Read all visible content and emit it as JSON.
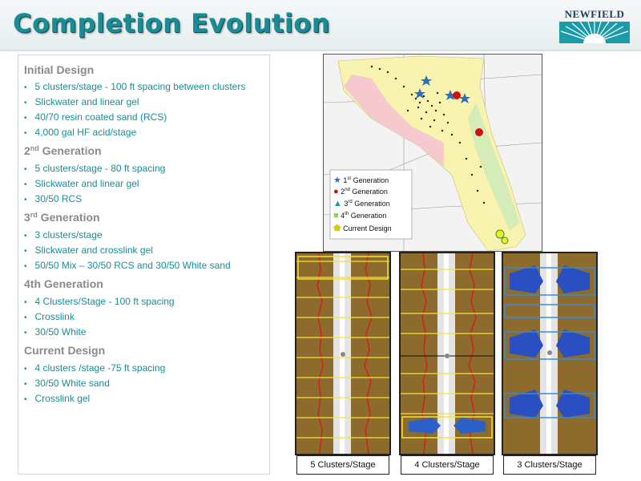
{
  "header": {
    "title": "Completion Evolution",
    "logo_text": "NEWFIELD"
  },
  "text_panel": {
    "initial": {
      "heading": "Initial Design",
      "bullets": [
        "5 clusters/stage - 100 ft spacing between clusters",
        "Slickwater and linear gel",
        "40/70 resin coated sand (RCS)",
        "4,000 gal HF acid/stage"
      ]
    },
    "second": {
      "heading_num": "2",
      "heading_sup": "nd",
      "heading_rest": " Generation",
      "bullets": [
        "5 clusters/stage - 80 ft spacing",
        "Slickwater and linear gel",
        "30/50 RCS"
      ]
    },
    "third": {
      "heading_num": "3",
      "heading_sup": "rd",
      "heading_rest": " Generation",
      "bullets": [
        "3 clusters/stage",
        "Slickwater and crosslink gel",
        "50/50 Mix – 30/50 RCS and 30/50 White sand"
      ]
    },
    "fourth": {
      "heading": "4th Generation",
      "bullets": [
        "4 Clusters/Stage - 100 ft spacing",
        "Crosslink",
        "30/50 White"
      ]
    },
    "current": {
      "heading": "Current Design",
      "bullets": [
        "4 clusters /stage -75 ft spacing",
        "30/50 White sand",
        "Crosslink gel"
      ]
    }
  },
  "map": {
    "legend": [
      {
        "num": "1",
        "sup": "st",
        "rest": " Generation",
        "marker": "star",
        "color": "#2a6fc4"
      },
      {
        "num": "2",
        "sup": "nd",
        "rest": " Generation",
        "marker": "circle",
        "color": "#cc1111"
      },
      {
        "num": "3",
        "sup": "rd",
        "rest": " Generation",
        "marker": "triangle",
        "color": "#1a9aa0"
      },
      {
        "num": "4",
        "sup": "th",
        "rest": " Generation",
        "marker": "square",
        "color": "#9acd5a"
      },
      {
        "num": "",
        "sup": "",
        "rest": "Current Design",
        "marker": "pentagon",
        "color": "#f0f020"
      }
    ]
  },
  "logs": {
    "labels": [
      "5 Clusters/Stage",
      "4 Clusters/Stage",
      "3 Clusters/Stage"
    ]
  },
  "colors": {
    "title": "#1a8c96",
    "bullet_text": "#1a8c96",
    "heading_text": "#8a8a8a",
    "zone_pink": "#f6c9cf",
    "zone_yellow": "#f8f4b0",
    "zone_green": "#d6ecb8"
  }
}
